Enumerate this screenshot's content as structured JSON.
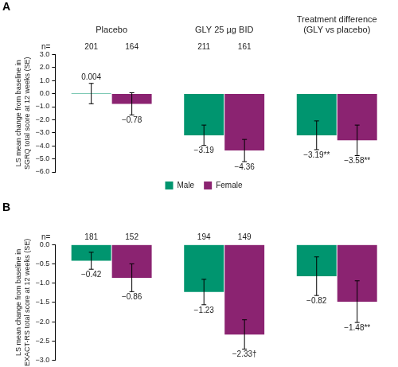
{
  "chart_data": [
    {
      "type": "bar",
      "panel": "A",
      "categories": [
        "Placebo",
        "GLY 25 µg BID",
        "Treatment difference (GLY vs placebo)"
      ],
      "y_label": "LS mean change from baseline in SGRQ total score at 12 weeks (SE)",
      "n_label": "n=",
      "series": [
        {
          "name": "Male",
          "color": "#00956f",
          "values": [
            0.004,
            -3.19,
            -3.19
          ],
          "value_labels": [
            "0.004",
            "−3.19",
            "−3.19**"
          ],
          "errors": [
            0.78,
            0.78,
            1.1
          ],
          "n": [
            201,
            211,
            null
          ]
        },
        {
          "name": "Female",
          "color": "#8b2371",
          "values": [
            -0.78,
            -4.36,
            -3.58
          ],
          "value_labels": [
            "−0.78",
            "−4.36",
            "−3.58**"
          ],
          "errors": [
            0.85,
            0.85,
            1.17
          ],
          "n": [
            164,
            161,
            null
          ]
        }
      ],
      "ylim": [
        -6,
        3
      ],
      "yticks": [
        {
          "value": 3,
          "label": "3.0"
        },
        {
          "value": 2,
          "label": "2.0"
        },
        {
          "value": 1,
          "label": "1.0"
        },
        {
          "value": 0,
          "label": "0.0"
        },
        {
          "value": -1,
          "label": "−1.0"
        },
        {
          "value": -2,
          "label": "−2.0"
        },
        {
          "value": -3,
          "label": "−3.0"
        },
        {
          "value": -4,
          "label": "−4.0"
        },
        {
          "value": -5,
          "label": "−5.0"
        },
        {
          "value": -6,
          "label": "−6.0"
        }
      ],
      "grid": false,
      "legend": "bottom",
      "data_labels": true
    },
    {
      "type": "bar",
      "panel": "B",
      "categories": [
        null,
        null,
        null
      ],
      "y_label": "LS mean change from baseline in EXACT-RS total score at 12 weeks (SE)",
      "n_label": "n=",
      "series": [
        {
          "name": "Male",
          "color": "#00956f",
          "values": [
            -0.42,
            -1.23,
            -0.82
          ],
          "value_labels": [
            "−0.42",
            "−1.23",
            "−0.82"
          ],
          "errors": [
            0.22,
            0.33,
            0.5
          ],
          "n": [
            181,
            194,
            null
          ]
        },
        {
          "name": "Female",
          "color": "#8b2371",
          "values": [
            -0.86,
            -2.33,
            -1.48
          ],
          "value_labels": [
            "−0.86",
            "−2.33†",
            "−1.48**"
          ],
          "errors": [
            0.36,
            0.38,
            0.54
          ],
          "n": [
            152,
            149,
            null
          ]
        }
      ],
      "ylim": [
        -3,
        0
      ],
      "yticks": [
        {
          "value": 0,
          "label": "0.0"
        },
        {
          "value": -0.5,
          "label": "−0.5"
        },
        {
          "value": -1,
          "label": "−1.0"
        },
        {
          "value": -1.5,
          "label": "−1.5"
        },
        {
          "value": -2,
          "label": "−2.0"
        },
        {
          "value": -2.5,
          "label": "−2.5"
        },
        {
          "value": -3,
          "label": "−3.0"
        }
      ],
      "grid": false,
      "data_labels": true
    }
  ]
}
